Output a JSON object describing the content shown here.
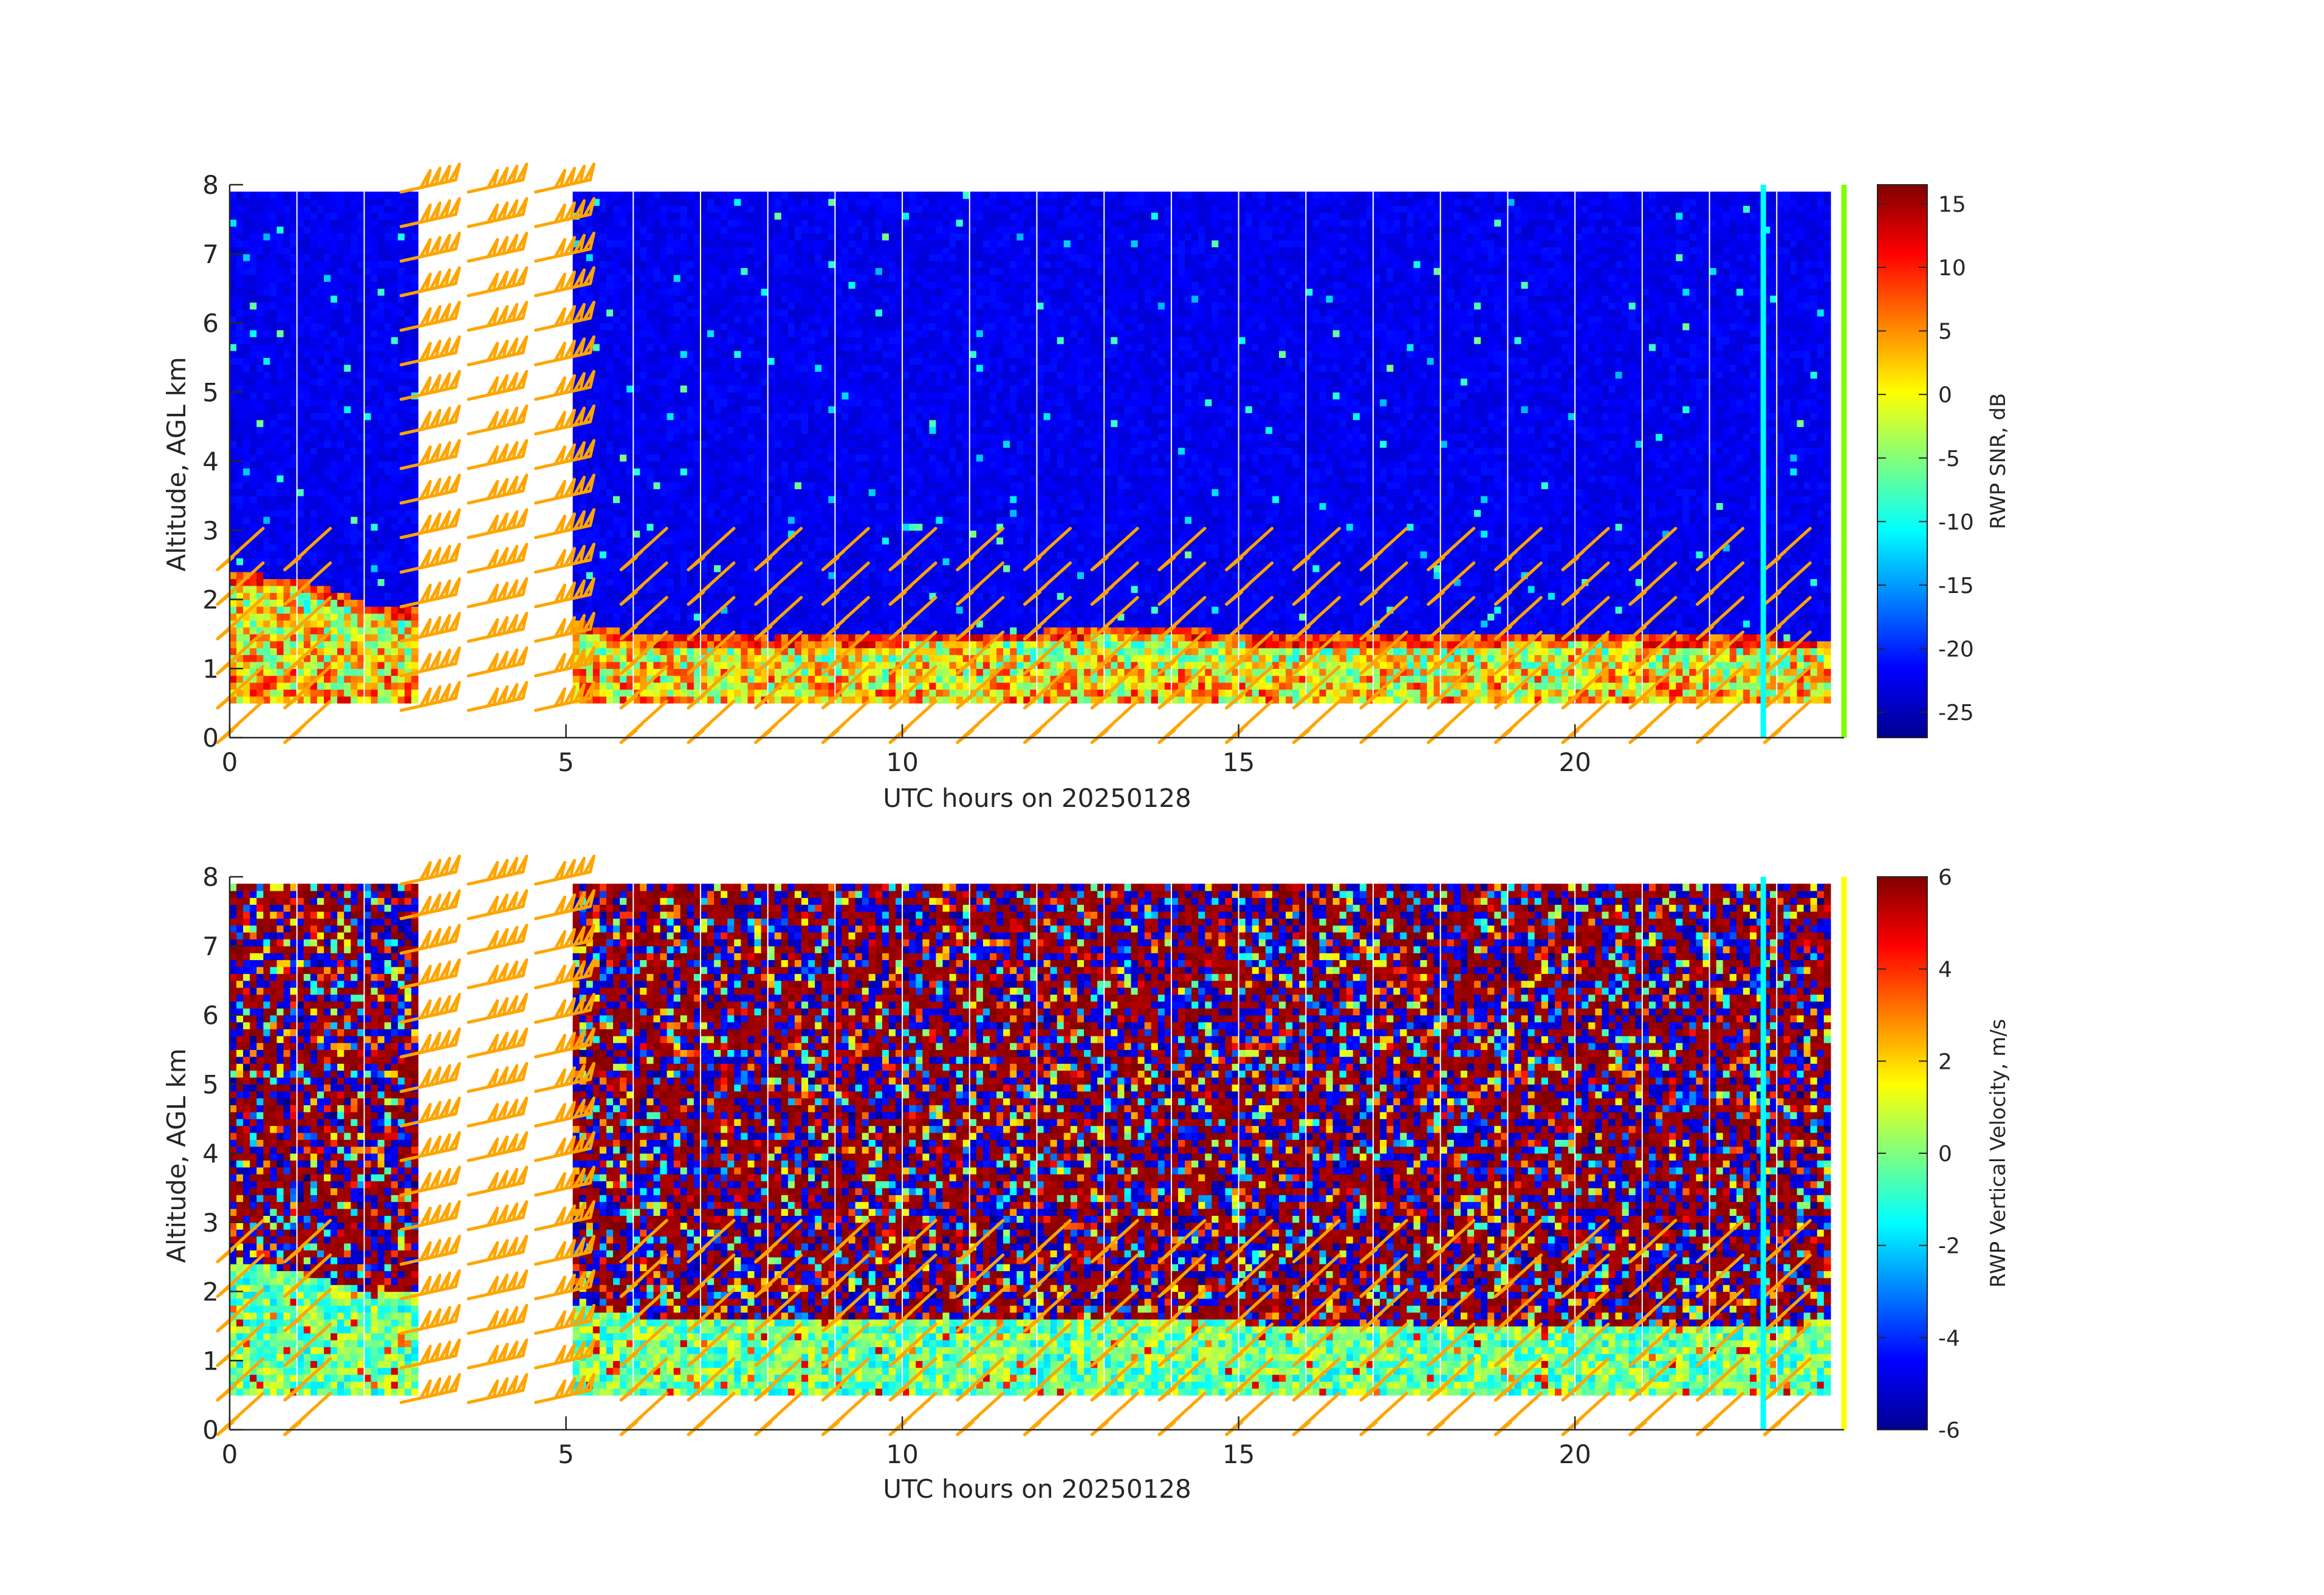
{
  "chart_data": [
    {
      "type": "heatmap",
      "panel": "top",
      "quantity": "SNR",
      "xlabel": "UTC hours on 20250128",
      "ylabel": "Altitude, AGL km",
      "xlim": [
        0,
        24
      ],
      "ylim": [
        0,
        8
      ],
      "xticks": [
        0,
        5,
        10,
        15,
        20
      ],
      "yticks": [
        0,
        1,
        2,
        3,
        4,
        5,
        6,
        7,
        8
      ],
      "colorbar": {
        "label": "RWP SNR, dB",
        "colormap": "jet",
        "range": [
          -27,
          16.5
        ],
        "ticks": [
          -25,
          -20,
          -15,
          -10,
          -5,
          0,
          5,
          10,
          15
        ]
      },
      "data_extent": {
        "x": [
          0,
          23.8
        ],
        "y": [
          0.5,
          7.9
        ]
      },
      "data_gap_hours": [
        2.8,
        5.05
      ],
      "boundary_layer_top_km": [
        {
          "x": 0,
          "y": 2.35
        },
        {
          "x": 1,
          "y": 2.25
        },
        {
          "x": 2,
          "y": 1.9
        },
        {
          "x": 2.8,
          "y": 1.8
        },
        {
          "x": 5.05,
          "y": 1.65
        },
        {
          "x": 6,
          "y": 1.45
        },
        {
          "x": 8,
          "y": 1.4
        },
        {
          "x": 10,
          "y": 1.45
        },
        {
          "x": 12,
          "y": 1.5
        },
        {
          "x": 13.5,
          "y": 1.6
        },
        {
          "x": 15,
          "y": 1.45
        },
        {
          "x": 17,
          "y": 1.4
        },
        {
          "x": 19,
          "y": 1.45
        },
        {
          "x": 21,
          "y": 1.45
        },
        {
          "x": 23,
          "y": 1.4
        },
        {
          "x": 23.8,
          "y": 1.4
        }
      ],
      "vertical_markers": [
        {
          "x": 22.8,
          "color": "#00ffff"
        },
        {
          "x": 24.0,
          "color": "#7fff00"
        }
      ]
    },
    {
      "type": "heatmap",
      "panel": "bottom",
      "quantity": "vertical_velocity",
      "xlabel": "UTC hours on 20250128",
      "ylabel": "Altitude, AGL km",
      "xlim": [
        0,
        24
      ],
      "ylim": [
        0,
        8
      ],
      "xticks": [
        0,
        5,
        10,
        15,
        20
      ],
      "yticks": [
        0,
        1,
        2,
        3,
        4,
        5,
        6,
        7,
        8
      ],
      "colorbar": {
        "label": "RWP Vertical Velocity, m/s",
        "colormap": "jet",
        "range": [
          -6,
          6
        ],
        "ticks": [
          -6,
          -4,
          -2,
          0,
          2,
          4,
          6
        ]
      },
      "data_extent": {
        "x": [
          0,
          23.8
        ],
        "y": [
          0.5,
          7.9
        ]
      },
      "data_gap_hours": [
        2.8,
        5.05
      ],
      "boundary_layer_top_km": [
        {
          "x": 0,
          "y": 2.4
        },
        {
          "x": 1,
          "y": 2.25
        },
        {
          "x": 2,
          "y": 1.95
        },
        {
          "x": 2.8,
          "y": 1.9
        },
        {
          "x": 5.05,
          "y": 1.75
        },
        {
          "x": 6,
          "y": 1.6
        },
        {
          "x": 10,
          "y": 1.55
        },
        {
          "x": 15,
          "y": 1.5
        },
        {
          "x": 20,
          "y": 1.5
        },
        {
          "x": 23.8,
          "y": 1.45
        }
      ],
      "vertical_markers": [
        {
          "x": 22.8,
          "color": "#00ffff"
        },
        {
          "x": 24.0,
          "color": "#ffff00"
        }
      ]
    }
  ],
  "wind_barbs": {
    "color": "#ffa500",
    "times_h": [
      0,
      1,
      3,
      4,
      5,
      6,
      7,
      8,
      9,
      10,
      11,
      12,
      13,
      14,
      15,
      16,
      17,
      18,
      19,
      20,
      21,
      22,
      23
    ],
    "low_levels_km": [
      0,
      0.5,
      1.0,
      1.5,
      2.0,
      2.5
    ],
    "gap_column_levels_km": [
      0.5,
      1.0,
      1.5,
      2.0,
      2.5,
      3.0,
      3.5,
      4.0,
      4.5,
      5.0,
      5.5,
      6.0,
      6.5,
      7.0,
      7.5,
      8.0
    ]
  }
}
